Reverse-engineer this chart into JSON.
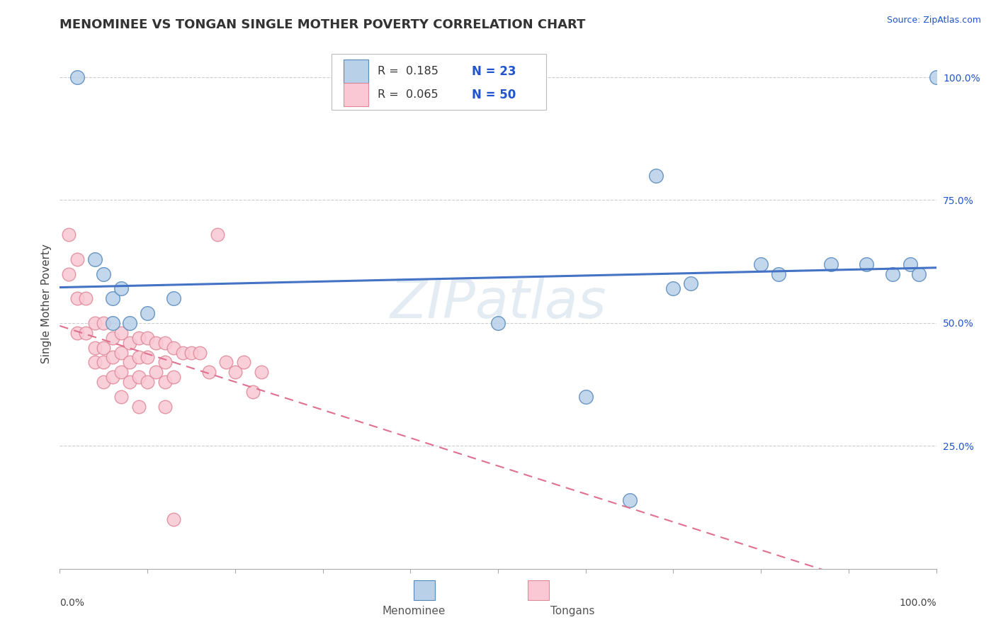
{
  "title": "MENOMINEE VS TONGAN SINGLE MOTHER POVERTY CORRELATION CHART",
  "source_text": "Source: ZipAtlas.com",
  "ylabel": "Single Mother Poverty",
  "legend_menominee_R": "R =  0.185",
  "legend_menominee_N": "N = 23",
  "legend_tongan_R": "R =  0.065",
  "legend_tongan_N": "N = 50",
  "menominee_label": "Menominee",
  "tongan_label": "Tongans",
  "menominee_x": [
    0.02,
    0.04,
    0.05,
    0.06,
    0.06,
    0.07,
    0.08,
    0.1,
    0.13,
    0.5,
    0.68,
    0.7,
    0.72,
    0.8,
    0.82,
    0.88,
    0.92,
    0.95,
    0.97,
    0.98,
    1.0,
    0.6,
    0.65
  ],
  "menominee_y": [
    1.0,
    0.63,
    0.6,
    0.55,
    0.5,
    0.57,
    0.5,
    0.52,
    0.55,
    0.5,
    0.8,
    0.57,
    0.58,
    0.62,
    0.6,
    0.62,
    0.62,
    0.6,
    0.62,
    0.6,
    1.0,
    0.35,
    0.14
  ],
  "tongan_x": [
    0.01,
    0.01,
    0.02,
    0.02,
    0.02,
    0.03,
    0.03,
    0.04,
    0.04,
    0.04,
    0.05,
    0.05,
    0.05,
    0.05,
    0.06,
    0.06,
    0.06,
    0.07,
    0.07,
    0.07,
    0.07,
    0.08,
    0.08,
    0.08,
    0.09,
    0.09,
    0.09,
    0.09,
    0.1,
    0.1,
    0.1,
    0.11,
    0.11,
    0.12,
    0.12,
    0.12,
    0.12,
    0.13,
    0.13,
    0.14,
    0.15,
    0.16,
    0.17,
    0.18,
    0.19,
    0.2,
    0.21,
    0.22,
    0.23,
    0.13
  ],
  "tongan_y": [
    0.68,
    0.6,
    0.63,
    0.55,
    0.48,
    0.55,
    0.48,
    0.5,
    0.45,
    0.42,
    0.5,
    0.45,
    0.42,
    0.38,
    0.47,
    0.43,
    0.39,
    0.48,
    0.44,
    0.4,
    0.35,
    0.46,
    0.42,
    0.38,
    0.47,
    0.43,
    0.39,
    0.33,
    0.47,
    0.43,
    0.38,
    0.46,
    0.4,
    0.46,
    0.42,
    0.38,
    0.33,
    0.45,
    0.39,
    0.44,
    0.44,
    0.44,
    0.4,
    0.68,
    0.42,
    0.4,
    0.42,
    0.36,
    0.4,
    0.1
  ],
  "menominee_color": "#b8d0e8",
  "tongan_color": "#f9c8d4",
  "menominee_edge": "#5588bb",
  "tongan_edge": "#e08898",
  "trend_menominee_color": "#4472c4",
  "trend_tongan_color": "#e07090",
  "watermark": "ZIPatlas",
  "background_color": "#ffffff",
  "grid_color": "#c8c8c8",
  "ylim_min": 0.0,
  "ylim_max": 1.08,
  "xlim_min": 0.0,
  "xlim_max": 1.0,
  "yticks": [
    0.25,
    0.5,
    0.75,
    1.0
  ],
  "ytick_labels": [
    "25.0%",
    "50.0%",
    "75.0%",
    "100.0%"
  ],
  "xtick_left_label": "0.0%",
  "xtick_right_label": "100.0%",
  "title_fontsize": 13,
  "axis_fontsize": 10,
  "legend_text_color": "#333333",
  "legend_value_color": "#2255cc"
}
